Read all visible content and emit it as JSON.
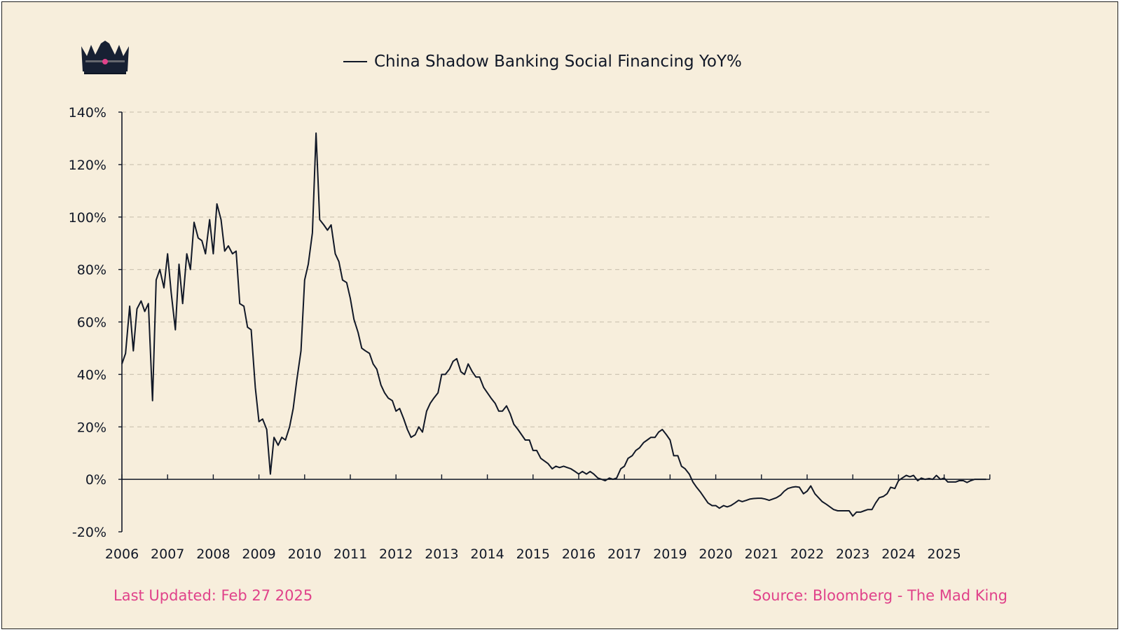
{
  "chart_data": {
    "type": "line",
    "title": "",
    "xlabel": "",
    "ylabel": "",
    "legend_position": "top-center",
    "grid": "horizontal-dashed",
    "x_tick_labels": [
      "2006",
      "2007",
      "2008",
      "2009",
      "2010",
      "2011",
      "2012",
      "2013",
      "2014",
      "2015",
      "2016",
      "2017",
      "2019",
      "2020",
      "2021",
      "2022",
      "2023",
      "2024",
      "2025"
    ],
    "y_ticks": [
      -20,
      0,
      20,
      40,
      60,
      80,
      100,
      120,
      140
    ],
    "y_tick_labels": [
      "-20%",
      "0%",
      "20%",
      "40%",
      "60%",
      "80%",
      "100%",
      "120%",
      "140%"
    ],
    "ylim": [
      -20,
      140
    ],
    "series": [
      {
        "name": "China Shadow Banking Social Financing YoY%",
        "color": "#111827",
        "points": [
          [
            0.0,
            44
          ],
          [
            0.08,
            48
          ],
          [
            0.17,
            66
          ],
          [
            0.25,
            49
          ],
          [
            0.33,
            65
          ],
          [
            0.42,
            68
          ],
          [
            0.5,
            64
          ],
          [
            0.58,
            67
          ],
          [
            0.67,
            30
          ],
          [
            0.75,
            76
          ],
          [
            0.83,
            80
          ],
          [
            0.92,
            73
          ],
          [
            1.0,
            86
          ],
          [
            1.08,
            71
          ],
          [
            1.17,
            57
          ],
          [
            1.25,
            82
          ],
          [
            1.33,
            67
          ],
          [
            1.42,
            86
          ],
          [
            1.5,
            80
          ],
          [
            1.58,
            98
          ],
          [
            1.67,
            92
          ],
          [
            1.75,
            91
          ],
          [
            1.83,
            86
          ],
          [
            1.92,
            99
          ],
          [
            2.0,
            86
          ],
          [
            2.08,
            105
          ],
          [
            2.17,
            99
          ],
          [
            2.25,
            87
          ],
          [
            2.33,
            89
          ],
          [
            2.42,
            86
          ],
          [
            2.5,
            87
          ],
          [
            2.58,
            67
          ],
          [
            2.67,
            66
          ],
          [
            2.75,
            58
          ],
          [
            2.83,
            57
          ],
          [
            2.92,
            35
          ],
          [
            3.0,
            22
          ],
          [
            3.08,
            23
          ],
          [
            3.17,
            19
          ],
          [
            3.25,
            2
          ],
          [
            3.33,
            16
          ],
          [
            3.42,
            13
          ],
          [
            3.5,
            16
          ],
          [
            3.58,
            15
          ],
          [
            3.67,
            20
          ],
          [
            3.75,
            27
          ],
          [
            3.83,
            38
          ],
          [
            3.92,
            49
          ],
          [
            4.0,
            76
          ],
          [
            4.08,
            82
          ],
          [
            4.17,
            94
          ],
          [
            4.25,
            132
          ],
          [
            4.33,
            99
          ],
          [
            4.42,
            97
          ],
          [
            4.5,
            95
          ],
          [
            4.58,
            97
          ],
          [
            4.67,
            86
          ],
          [
            4.75,
            83
          ],
          [
            4.83,
            76
          ],
          [
            4.92,
            75
          ],
          [
            5.0,
            69
          ],
          [
            5.08,
            61
          ],
          [
            5.17,
            56
          ],
          [
            5.25,
            50
          ],
          [
            5.33,
            49
          ],
          [
            5.42,
            48
          ],
          [
            5.5,
            44
          ],
          [
            5.58,
            42
          ],
          [
            5.67,
            36
          ],
          [
            5.75,
            33
          ],
          [
            5.83,
            31
          ],
          [
            5.92,
            30
          ],
          [
            6.0,
            26
          ],
          [
            6.08,
            27
          ],
          [
            6.17,
            23
          ],
          [
            6.25,
            19
          ],
          [
            6.33,
            16
          ],
          [
            6.42,
            17
          ],
          [
            6.5,
            20
          ],
          [
            6.58,
            18
          ],
          [
            6.67,
            26
          ],
          [
            6.75,
            29
          ],
          [
            6.83,
            31
          ],
          [
            6.92,
            33
          ],
          [
            7.0,
            40
          ],
          [
            7.08,
            40
          ],
          [
            7.17,
            42
          ],
          [
            7.25,
            45
          ],
          [
            7.33,
            46
          ],
          [
            7.42,
            41
          ],
          [
            7.5,
            40
          ],
          [
            7.58,
            44
          ],
          [
            7.67,
            41
          ],
          [
            7.75,
            39
          ],
          [
            7.83,
            39
          ],
          [
            7.92,
            35
          ],
          [
            8.0,
            33
          ],
          [
            8.08,
            31
          ],
          [
            8.17,
            29
          ],
          [
            8.25,
            26
          ],
          [
            8.33,
            26
          ],
          [
            8.42,
            28
          ],
          [
            8.5,
            25
          ],
          [
            8.58,
            21
          ],
          [
            8.67,
            19
          ],
          [
            8.75,
            17
          ],
          [
            8.83,
            15
          ],
          [
            8.92,
            15
          ],
          [
            9.0,
            11
          ],
          [
            9.08,
            11
          ],
          [
            9.17,
            8
          ],
          [
            9.25,
            7
          ],
          [
            9.33,
            6
          ],
          [
            9.42,
            4
          ],
          [
            9.5,
            5
          ],
          [
            9.58,
            4.5
          ],
          [
            9.67,
            5
          ],
          [
            9.75,
            4.5
          ],
          [
            9.83,
            4
          ],
          [
            9.92,
            3
          ],
          [
            10.0,
            2
          ],
          [
            10.08,
            3
          ],
          [
            10.17,
            2
          ],
          [
            10.25,
            3
          ],
          [
            10.33,
            2
          ],
          [
            10.42,
            0.5
          ],
          [
            10.5,
            0
          ],
          [
            10.58,
            -0.5
          ],
          [
            10.67,
            0.5
          ],
          [
            10.75,
            0
          ],
          [
            10.83,
            0.5
          ],
          [
            10.92,
            4
          ],
          [
            11.0,
            5
          ],
          [
            11.08,
            8
          ],
          [
            11.17,
            9
          ],
          [
            11.25,
            11
          ],
          [
            11.33,
            12
          ],
          [
            11.42,
            14
          ],
          [
            11.5,
            15
          ],
          [
            11.58,
            16
          ],
          [
            11.67,
            16
          ],
          [
            11.75,
            18
          ],
          [
            11.83,
            19
          ],
          [
            11.92,
            17
          ],
          [
            12.0,
            15
          ],
          [
            12.08,
            9
          ],
          [
            12.17,
            9
          ],
          [
            12.25,
            5
          ],
          [
            12.33,
            4
          ],
          [
            12.42,
            2
          ],
          [
            12.5,
            -1
          ],
          [
            12.58,
            -3
          ],
          [
            12.67,
            -5
          ],
          [
            12.75,
            -7
          ],
          [
            12.83,
            -9
          ],
          [
            12.92,
            -10
          ],
          [
            13.0,
            -10
          ],
          [
            13.08,
            -11
          ],
          [
            13.17,
            -10
          ],
          [
            13.25,
            -10.5
          ],
          [
            13.33,
            -10
          ],
          [
            13.42,
            -9
          ],
          [
            13.5,
            -8
          ],
          [
            13.58,
            -8.5
          ],
          [
            13.67,
            -8
          ],
          [
            13.75,
            -7.5
          ],
          [
            13.83,
            -7.3
          ],
          [
            13.92,
            -7.2
          ],
          [
            14.0,
            -7.2
          ],
          [
            14.08,
            -7.5
          ],
          [
            14.17,
            -8
          ],
          [
            14.25,
            -7.5
          ],
          [
            14.33,
            -7
          ],
          [
            14.42,
            -6
          ],
          [
            14.5,
            -4.5
          ],
          [
            14.58,
            -3.5
          ],
          [
            14.67,
            -3
          ],
          [
            14.75,
            -2.8
          ],
          [
            14.83,
            -3
          ],
          [
            14.92,
            -5.5
          ],
          [
            15.0,
            -4.5
          ],
          [
            15.08,
            -2.5
          ],
          [
            15.17,
            -5.5
          ],
          [
            15.25,
            -7
          ],
          [
            15.33,
            -8.5
          ],
          [
            15.42,
            -9.5
          ],
          [
            15.5,
            -10.5
          ],
          [
            15.58,
            -11.5
          ],
          [
            15.67,
            -12
          ],
          [
            15.75,
            -12
          ],
          [
            15.83,
            -12
          ],
          [
            15.92,
            -12
          ],
          [
            16.0,
            -14
          ],
          [
            16.08,
            -12.5
          ],
          [
            16.17,
            -12.5
          ],
          [
            16.25,
            -12
          ],
          [
            16.33,
            -11.5
          ],
          [
            16.42,
            -11.5
          ],
          [
            16.5,
            -9
          ],
          [
            16.58,
            -7
          ],
          [
            16.67,
            -6.5
          ],
          [
            16.75,
            -5.5
          ],
          [
            16.83,
            -3
          ],
          [
            16.92,
            -3.5
          ],
          [
            17.0,
            -0.5
          ],
          [
            17.08,
            0.5
          ],
          [
            17.17,
            1.5
          ],
          [
            17.25,
            1
          ],
          [
            17.33,
            1.5
          ],
          [
            17.42,
            -0.5
          ],
          [
            17.5,
            0.5
          ],
          [
            17.58,
            0
          ],
          [
            17.67,
            0.3
          ],
          [
            17.75,
            0
          ],
          [
            17.83,
            1.5
          ],
          [
            17.92,
            0
          ],
          [
            18.0,
            0.5
          ],
          [
            18.08,
            -1
          ],
          [
            18.17,
            -1
          ],
          [
            18.25,
            -1
          ],
          [
            18.33,
            -0.5
          ],
          [
            18.42,
            -0.5
          ],
          [
            18.5,
            -1.2
          ],
          [
            18.58,
            -0.5
          ],
          [
            18.67,
            0
          ],
          [
            18.75,
            0
          ],
          [
            18.83,
            0
          ],
          [
            18.92,
            0
          ]
        ]
      }
    ]
  },
  "legend": {
    "label": "China Shadow Banking Social Financing YoY%"
  },
  "footer": {
    "updated": "Last Updated: Feb 27 2025",
    "source": "Source: Bloomberg - The Mad King",
    "color": "#e0428a"
  },
  "logo": {
    "name": "crown-icon"
  },
  "colors": {
    "background": "#f7eedc",
    "line": "#111827",
    "grid": "#cfc6b4",
    "accent": "#e0428a"
  }
}
